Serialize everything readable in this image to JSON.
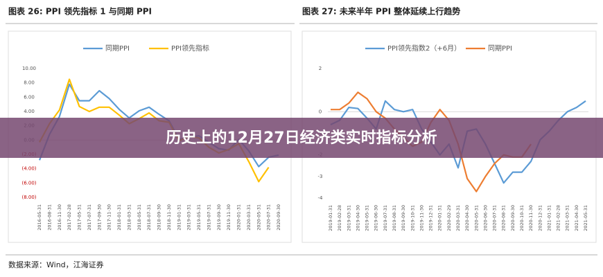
{
  "chart_data": [
    {
      "type": "line",
      "title": "图表 26:   PPI 领先指标 1 与同期 PPI",
      "categories": [
        "2016-05-31",
        "2016-08-31",
        "2016-11-30",
        "2017-02-28",
        "2017-05-31",
        "2017-07-31",
        "2017-09-30",
        "2017-11-30",
        "2018-01-31",
        "2018-03-31",
        "2018-05-31",
        "2018-07-31",
        "2018-09-30",
        "2018-11-30",
        "2019-01-31",
        "2019-03-31",
        "2019-05-31",
        "2019-07-31",
        "2019-09-30",
        "2019-11-30",
        "2020-01-31",
        "2020-03-31",
        "2020-05-31",
        "2020-07-31",
        "2020-09-30"
      ],
      "series": [
        {
          "name": "同期PPI",
          "color": "#5b9bd5",
          "values": [
            -2.8,
            0.8,
            3.3,
            7.8,
            5.5,
            5.5,
            6.9,
            5.8,
            4.3,
            3.1,
            4.1,
            4.6,
            3.6,
            2.7,
            0.1,
            0.4,
            0.6,
            -0.3,
            -1.2,
            -1.4,
            0.1,
            -1.5,
            -3.7,
            -2.4,
            -2.1
          ]
        },
        {
          "name": "PPI领先指标",
          "color": "#ffc000",
          "values": [
            -0.3,
            2.3,
            4.2,
            8.5,
            4.7,
            4.0,
            4.6,
            4.6,
            3.5,
            2.3,
            3.0,
            3.8,
            2.7,
            2.5,
            -0.1,
            0.5,
            0.3,
            -1.0,
            -1.8,
            -1.3,
            -0.5,
            -3.0,
            -5.8,
            -3.8,
            null
          ]
        }
      ],
      "ylim": [
        -8,
        10
      ],
      "yticks": [
        {
          "value": 10,
          "label": "10.00"
        },
        {
          "value": 8,
          "label": "8.00"
        },
        {
          "value": 6,
          "label": "6.00"
        },
        {
          "value": 4,
          "label": "4.00"
        },
        {
          "value": 2,
          "label": "2.00"
        },
        {
          "value": 0,
          "label": "0.00"
        },
        {
          "value": -2,
          "label": "(2.00)"
        },
        {
          "value": -4,
          "label": "(4.00)"
        },
        {
          "value": -6,
          "label": "(6.00)"
        },
        {
          "value": -8,
          "label": "(8.00)"
        }
      ],
      "negative_tick_color": "#c00000"
    },
    {
      "type": "line",
      "title": "图表 27:   未来半年 PPI 整体延续上行趋势",
      "categories": [
        "2019-01-31",
        "2019-02-28",
        "2019-03-31",
        "2019-04-30",
        "2019-05-31",
        "2019-06-30",
        "2019-07-31",
        "2019-08-31",
        "2019-09-30",
        "2019-10-31",
        "2019-11-30",
        "2019-12-31",
        "2020-01-31",
        "2020-02-29",
        "2020-03-31",
        "2020-04-30",
        "2020-05-31",
        "2020-06-30",
        "2020-07-31",
        "2020-08-31",
        "2020-09-30",
        "2020-10-31",
        "2020-11-30",
        "2020-12-31",
        "2021-01-31",
        "2021-02-28",
        "2021-03-31",
        "2021-04-30",
        "2021-05-31"
      ],
      "series": [
        {
          "name": "PPI领先指数2（+6月）",
          "color": "#5b9bd5",
          "values": [
            -0.6,
            -0.4,
            0.2,
            0.15,
            -0.3,
            -0.8,
            0.5,
            0.1,
            0.0,
            0.1,
            -0.8,
            -1.4,
            -2.0,
            -1.5,
            -2.6,
            -0.9,
            -0.8,
            -1.5,
            -2.4,
            -3.3,
            -2.8,
            -2.8,
            -2.3,
            -1.3,
            -0.9,
            -0.4,
            0.0,
            0.2,
            0.5
          ]
        },
        {
          "name": "同期PPI",
          "color": "#ed7d31",
          "values": [
            0.1,
            0.1,
            0.4,
            0.9,
            0.6,
            0.0,
            -0.3,
            -0.8,
            -1.2,
            -1.6,
            -1.4,
            -0.5,
            0.1,
            -0.4,
            -1.5,
            -3.1,
            -3.7,
            -3.0,
            -2.4,
            -2.0,
            -2.1,
            -2.1,
            -1.5,
            null,
            null,
            null,
            null,
            null,
            null
          ]
        }
      ],
      "ylim": [
        -4,
        2
      ],
      "yticks": [
        2,
        0,
        -1,
        -2,
        -3,
        -4
      ]
    }
  ],
  "banner": "历史上的12月27日经济类实时指标分析",
  "source": "数据来源：Wind，江海证券"
}
